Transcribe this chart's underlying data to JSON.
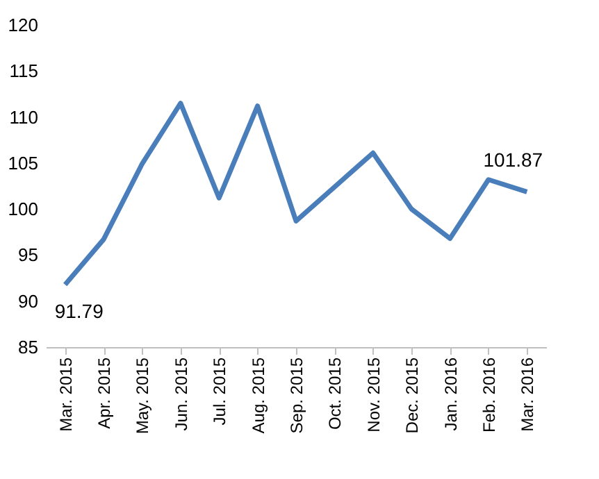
{
  "chart_data": {
    "type": "line",
    "categories": [
      "Mar. 2015",
      "Apr. 2015",
      "May. 2015",
      "Jun. 2015",
      "Jul. 2015",
      "Aug. 2015",
      "Sep. 2015",
      "Oct. 2015",
      "Nov. 2015",
      "Dec. 2015",
      "Jan. 2016",
      "Feb. 2016",
      "Mar. 2016"
    ],
    "series": [
      {
        "color": "#4a7ebb",
        "values": [
          91.79,
          96.7,
          104.9,
          111.5,
          101.2,
          111.2,
          98.7,
          102.4,
          106.1,
          100.0,
          96.8,
          103.2,
          101.87
        ],
        "value_labels": [
          "91.79",
          null,
          null,
          null,
          null,
          null,
          null,
          null,
          null,
          null,
          null,
          null,
          "101.87"
        ]
      }
    ],
    "ylim": [
      85,
      120
    ],
    "yticks": [
      85,
      90,
      95,
      100,
      105,
      110,
      115,
      120
    ],
    "grid": false,
    "marker": "none",
    "line_style": "solid"
  }
}
